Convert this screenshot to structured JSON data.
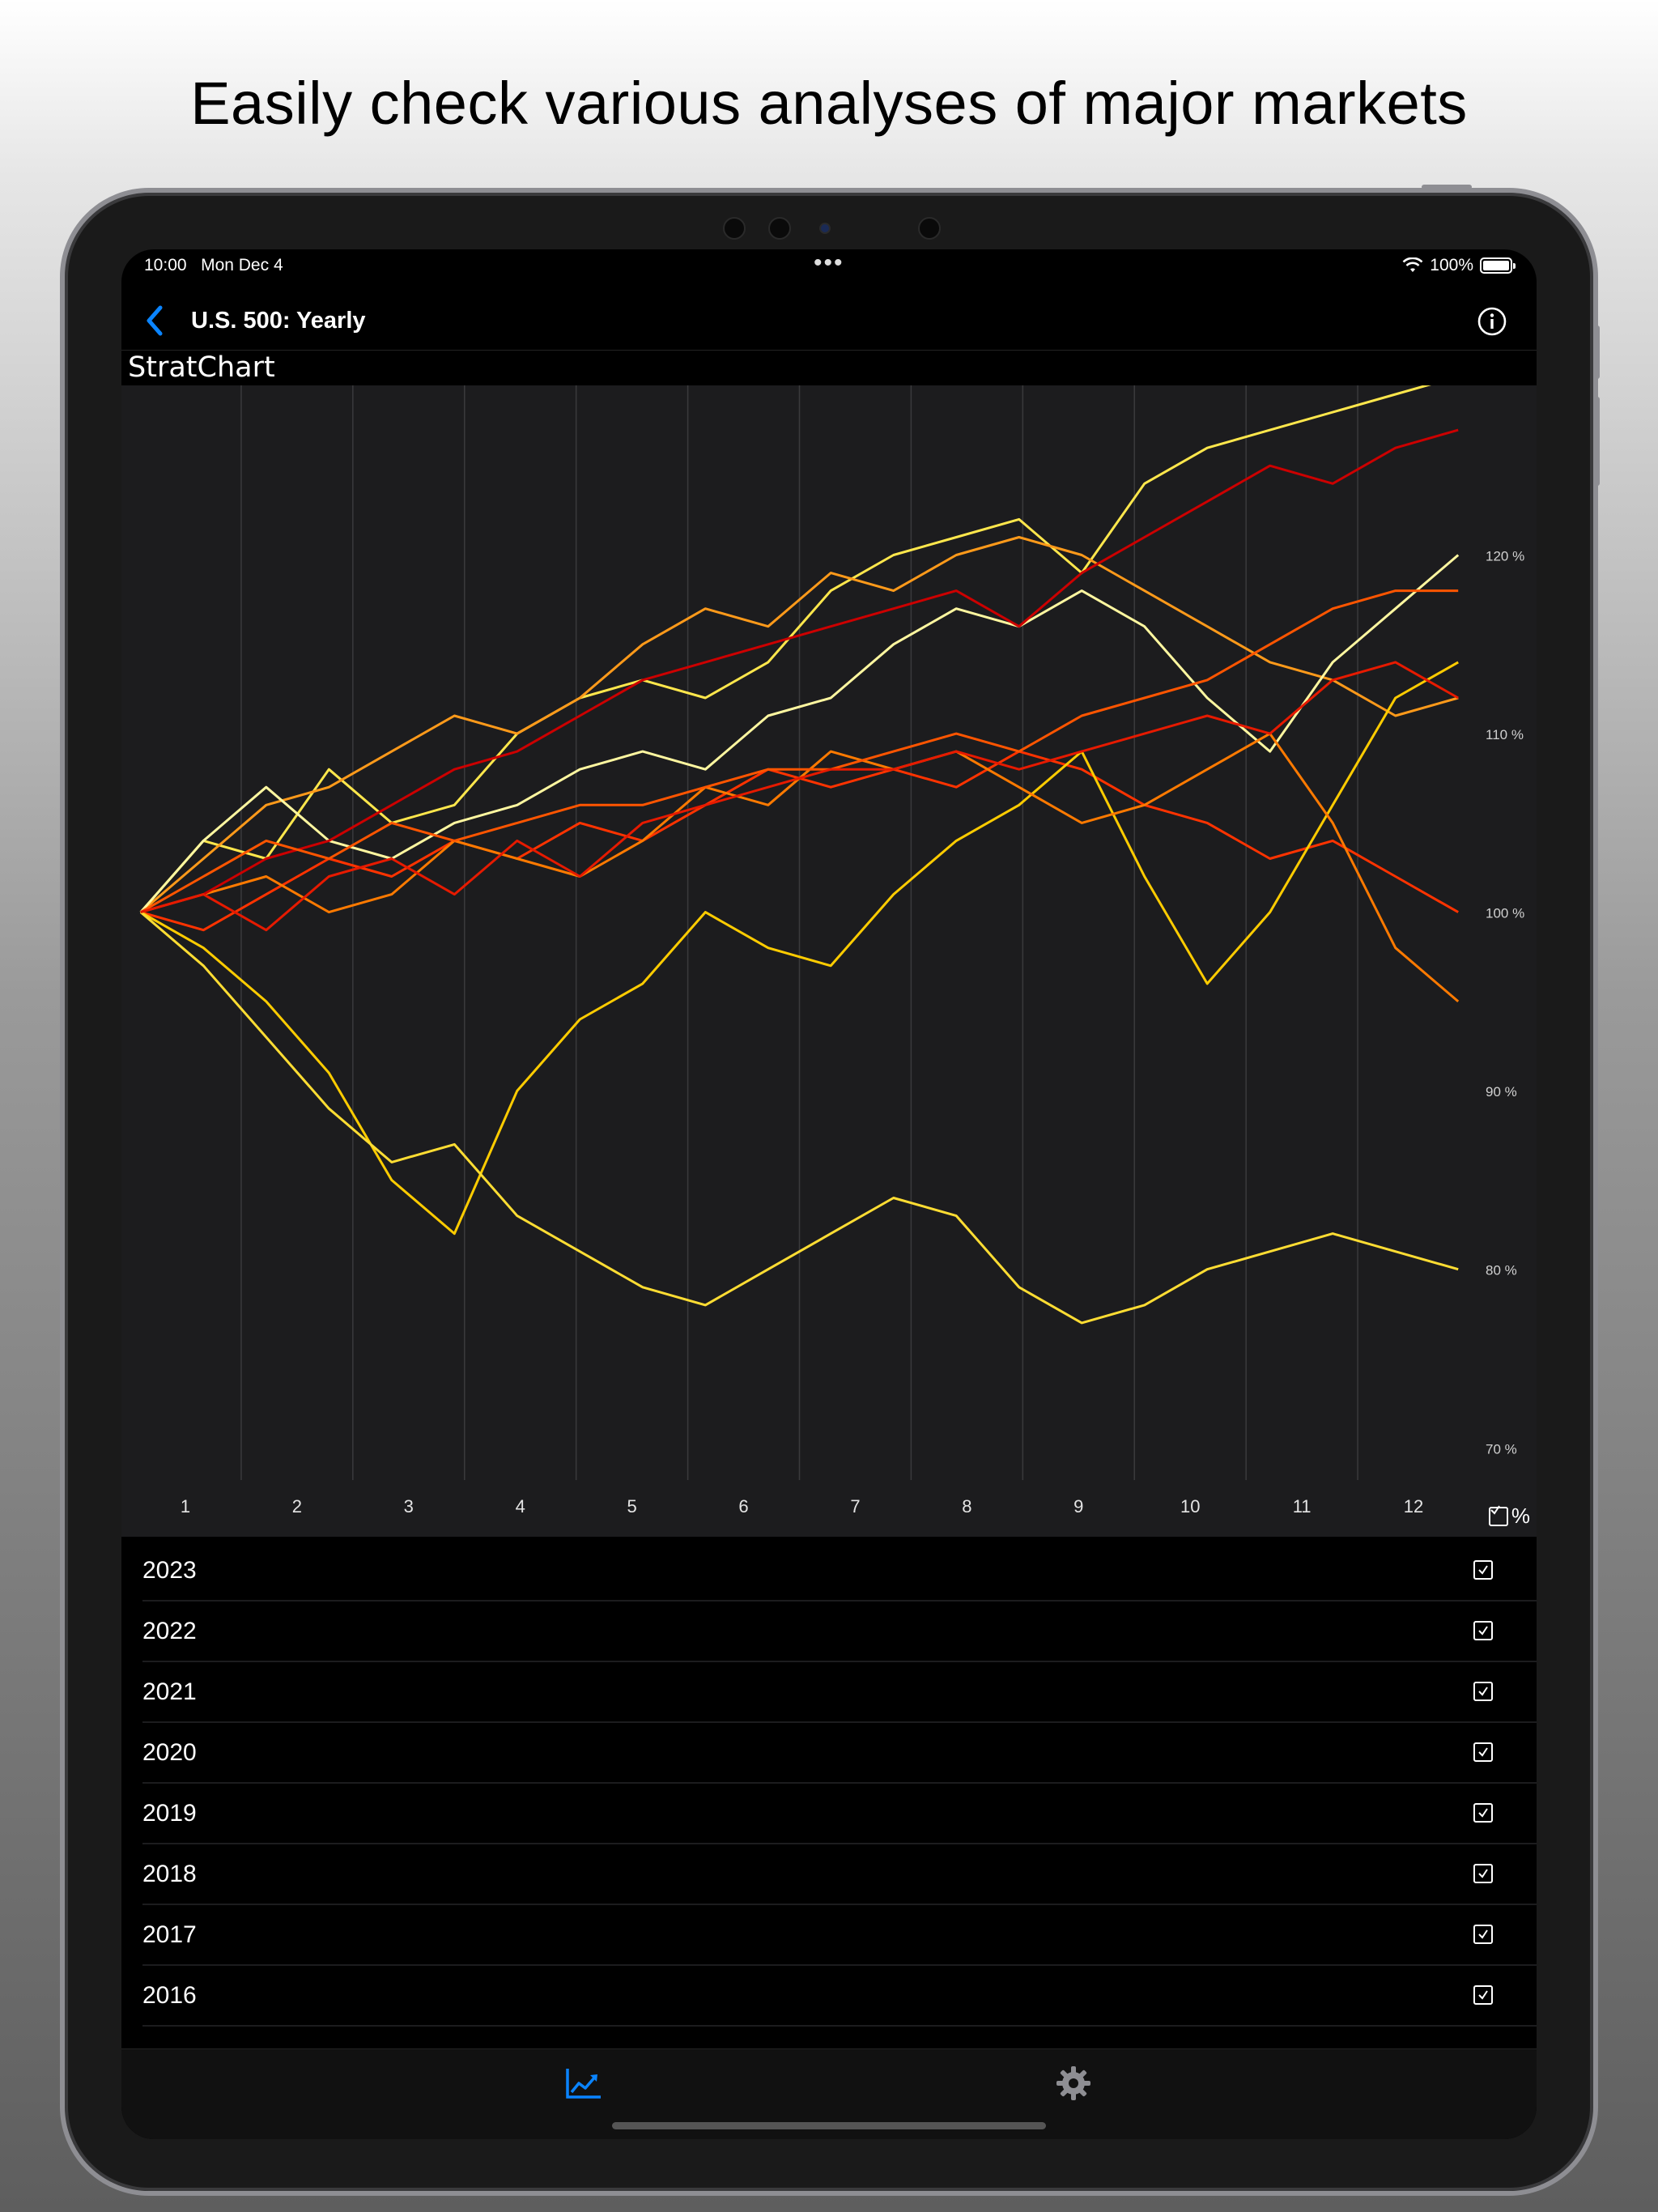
{
  "headline": "Easily check various analyses of major markets",
  "status_bar": {
    "time": "10:00",
    "date": "Mon Dec 4",
    "battery": "100%",
    "battery_level": 1.0
  },
  "nav": {
    "title": "U.S. 500: Yearly",
    "back_icon": "chevron-left-icon",
    "info_icon": "info-circle-icon"
  },
  "brand": "StratChart",
  "colors": {
    "accent": "#0a84ff",
    "chart_bg": "#1c1c1e",
    "grid": "#3a3a3c"
  },
  "chart_data": {
    "type": "line",
    "x_ticks": [
      "1",
      "2",
      "3",
      "4",
      "5",
      "6",
      "7",
      "8",
      "9",
      "10",
      "11",
      "12"
    ],
    "y_ticks": [
      "70 %",
      "80 %",
      "90 %",
      "100 %",
      "110 %",
      "120 %"
    ],
    "y_tick_values": [
      70,
      80,
      90,
      100,
      110,
      120
    ],
    "xlim": [
      0.5,
      12.5
    ],
    "ylim": [
      68.2,
      129.5
    ],
    "grid": true,
    "series": [
      {
        "color": "#ffe74c",
        "values": [
          100,
          104,
          103,
          108,
          105,
          106,
          110,
          112,
          113,
          112,
          114,
          118,
          120,
          121,
          122,
          119,
          124,
          126,
          127,
          128,
          129,
          130
        ]
      },
      {
        "color": "#ff9a1a",
        "values": [
          100,
          103,
          106,
          107,
          109,
          111,
          110,
          112,
          115,
          117,
          116,
          119,
          118,
          120,
          121,
          120,
          118,
          116,
          114,
          113,
          111,
          112
        ]
      },
      {
        "color": "#ff3300",
        "values": [
          100,
          99,
          101,
          103,
          102,
          104,
          103,
          105,
          104,
          106,
          108,
          107,
          108,
          107,
          109,
          108,
          106,
          105,
          103,
          104,
          102,
          100
        ]
      },
      {
        "color": "#fff7a0",
        "values": [
          100,
          104,
          107,
          104,
          103,
          105,
          106,
          108,
          109,
          108,
          111,
          112,
          115,
          117,
          116,
          118,
          116,
          112,
          109,
          114,
          117,
          120
        ]
      },
      {
        "color": "#ffcc00",
        "values": [
          100,
          98,
          95,
          91,
          85,
          82,
          90,
          94,
          96,
          100,
          98,
          97,
          101,
          104,
          106,
          109,
          102,
          96,
          100,
          106,
          112,
          114
        ]
      },
      {
        "color": "#ff7a00",
        "values": [
          100,
          101,
          102,
          100,
          101,
          104,
          103,
          102,
          104,
          107,
          106,
          109,
          108,
          109,
          107,
          105,
          106,
          108,
          110,
          105,
          98,
          95
        ]
      },
      {
        "color": "#cc0000",
        "values": [
          100,
          101,
          103,
          104,
          106,
          108,
          109,
          111,
          113,
          114,
          115,
          116,
          117,
          118,
          116,
          119,
          121,
          123,
          125,
          124,
          126,
          127
        ]
      },
      {
        "color": "#ffdd33",
        "values": [
          100,
          97,
          93,
          89,
          86,
          87,
          83,
          81,
          79,
          78,
          80,
          82,
          84,
          83,
          79,
          77,
          78,
          80,
          81,
          82,
          81,
          80
        ]
      },
      {
        "color": "#ff5500",
        "values": [
          100,
          102,
          104,
          103,
          105,
          104,
          105,
          106,
          106,
          107,
          108,
          108,
          109,
          110,
          109,
          111,
          112,
          113,
          115,
          117,
          118,
          118
        ]
      },
      {
        "color": "#e61a00",
        "values": [
          100,
          101,
          99,
          102,
          103,
          101,
          104,
          102,
          105,
          106,
          107,
          108,
          108,
          109,
          108,
          109,
          110,
          111,
          110,
          113,
          114,
          112
        ]
      }
    ]
  },
  "percent_toggle": {
    "label": "%"
  },
  "years": [
    {
      "label": "2023"
    },
    {
      "label": "2022"
    },
    {
      "label": "2021"
    },
    {
      "label": "2020"
    },
    {
      "label": "2019"
    },
    {
      "label": "2018"
    },
    {
      "label": "2017"
    },
    {
      "label": "2016"
    }
  ],
  "tabs": [
    {
      "icon": "chart-icon",
      "active": true
    },
    {
      "icon": "gear-icon",
      "active": false
    }
  ]
}
